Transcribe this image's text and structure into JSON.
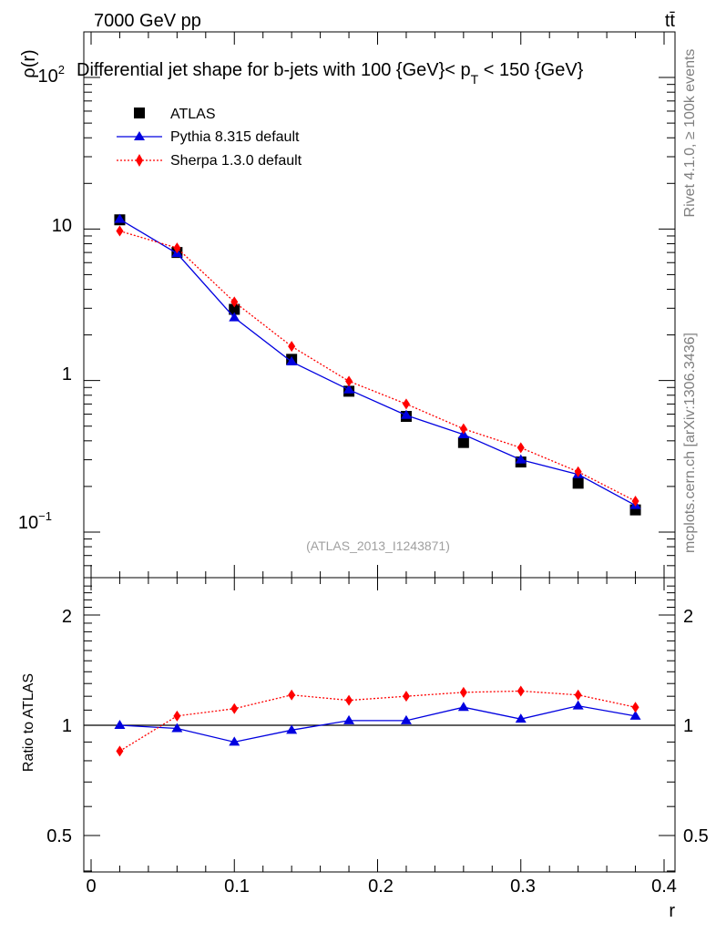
{
  "header": {
    "energy_label": "7000 GeV pp",
    "process_label": "tt̄"
  },
  "side_labels": {
    "rivet": "Rivet 4.1.0, ≥ 100k events",
    "mcplots": "mcplots.cern.ch [arXiv:1306.3436]"
  },
  "chart_data": {
    "type": "line",
    "title": "Differential jet shape for b-jets with 100 {GeV}< p_T < 150 {GeV}",
    "title_parts": {
      "main": "Differential jet shape for b-jets with 100 {GeV}< p",
      "sub": "T",
      "tail": " < 150 {GeV}"
    },
    "watermark": "(ATLAS_2013_I1243871)",
    "xlabel": "r",
    "ylabel": "ρ(r)",
    "ratio_ylabel": "Ratio to ATLAS",
    "xlim": [
      0,
      0.4
    ],
    "ylim": [
      0.05,
      200
    ],
    "yscale": "log",
    "ratio_ylim": [
      0.4,
      2.4
    ],
    "x_tick_labels": [
      "0",
      "0.1",
      "0.2",
      "0.3",
      "0.4"
    ],
    "y_tick_labels": [
      {
        "value": 100,
        "base": "10",
        "exp": "2"
      },
      {
        "value": 10,
        "base": "10",
        "exp": ""
      },
      {
        "value": 1,
        "base": "1",
        "exp": ""
      },
      {
        "value": 0.1,
        "base": "10",
        "exp": "−1"
      }
    ],
    "ratio_tick_labels": [
      "2",
      "1",
      "0.5"
    ],
    "ratio_tick_values": [
      2,
      1,
      0.5
    ],
    "x": [
      0.02,
      0.06,
      0.1,
      0.14,
      0.18,
      0.22,
      0.26,
      0.3,
      0.34,
      0.38
    ],
    "series": [
      {
        "name": "ATLAS",
        "marker": "square",
        "color": "#000000",
        "values": [
          11.5,
          7.0,
          2.95,
          1.38,
          0.85,
          0.58,
          0.39,
          0.29,
          0.21,
          0.14
        ]
      },
      {
        "name": "Pythia 8.315 default",
        "marker": "triangle",
        "color": "#0000e0",
        "line": "solid",
        "values": [
          11.6,
          6.9,
          2.6,
          1.33,
          0.87,
          0.59,
          0.44,
          0.3,
          0.24,
          0.15
        ],
        "ratio": [
          1.0,
          0.98,
          0.9,
          0.97,
          1.03,
          1.03,
          1.12,
          1.04,
          1.13,
          1.06
        ]
      },
      {
        "name": "Sherpa 1.3.0 default",
        "marker": "diamond",
        "color": "#ff0000",
        "line": "dotted",
        "values": [
          9.7,
          7.5,
          3.3,
          1.68,
          0.99,
          0.7,
          0.48,
          0.36,
          0.25,
          0.16
        ],
        "ratio": [
          0.85,
          1.06,
          1.11,
          1.21,
          1.17,
          1.2,
          1.23,
          1.24,
          1.21,
          1.12
        ]
      }
    ]
  }
}
